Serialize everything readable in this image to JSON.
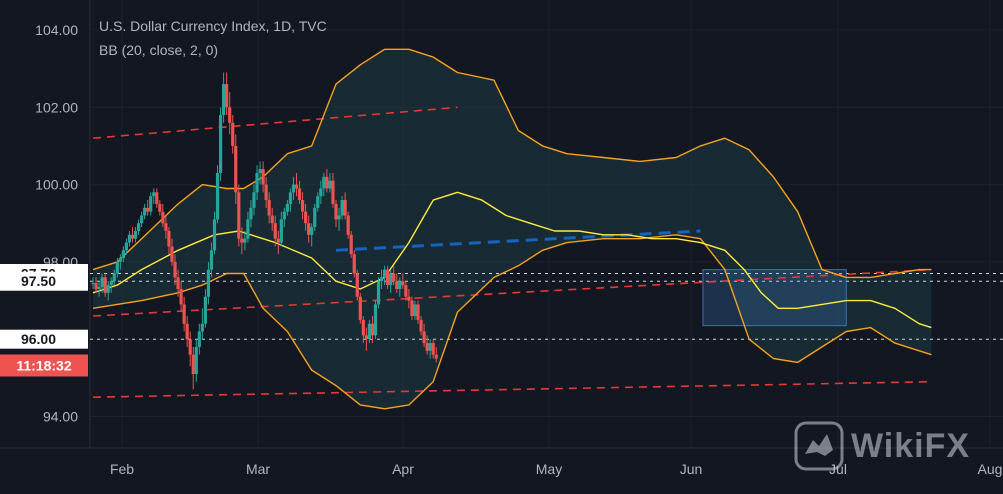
{
  "chart_data": {
    "type": "candlestick",
    "title": "U.S. Dollar Currency Index, 1D, TVC",
    "indicator": "BB (20, close, 2, 0)",
    "ylim": [
      93.2,
      104.6
    ],
    "y_ticks": [
      94.0,
      96.0,
      98.0,
      100.0,
      102.0,
      104.0
    ],
    "x_labels": [
      "Feb",
      "Mar",
      "Apr",
      "May",
      "Jun",
      "Jul",
      "Aug"
    ],
    "price_marks": [
      {
        "label": "97.70",
        "value": 97.7
      },
      {
        "label": "97.50",
        "value": 97.5
      },
      {
        "label": "96.00",
        "value": 96.0
      }
    ],
    "countdown_label": "11:18:32",
    "countdown_value": 95.32,
    "bb_middle": [
      [
        0,
        97.2
      ],
      [
        10,
        97.4
      ],
      [
        20,
        97.8
      ],
      [
        35,
        98.3
      ],
      [
        50,
        98.7
      ],
      [
        60,
        98.8
      ],
      [
        75,
        98.5
      ],
      [
        90,
        98.1
      ],
      [
        100,
        97.5
      ],
      [
        110,
        97.3
      ],
      [
        120,
        97.6
      ],
      [
        130,
        98.5
      ],
      [
        140,
        99.6
      ],
      [
        150,
        99.8
      ],
      [
        160,
        99.6
      ],
      [
        170,
        99.2
      ],
      [
        180,
        99.0
      ],
      [
        190,
        98.8
      ],
      [
        200,
        98.8
      ],
      [
        210,
        98.7
      ],
      [
        220,
        98.7
      ],
      [
        230,
        98.6
      ],
      [
        240,
        98.6
      ],
      [
        250,
        98.5
      ],
      [
        260,
        98.3
      ],
      [
        268,
        97.8
      ],
      [
        275,
        97.2
      ],
      [
        282,
        96.8
      ],
      [
        290,
        96.8
      ],
      [
        300,
        96.9
      ],
      [
        310,
        97.0
      ],
      [
        320,
        97.0
      ],
      [
        330,
        96.8
      ],
      [
        340,
        96.4
      ],
      [
        345,
        96.3
      ]
    ],
    "bb_upper": [
      [
        0,
        97.8
      ],
      [
        10,
        98.0
      ],
      [
        20,
        98.6
      ],
      [
        35,
        99.5
      ],
      [
        45,
        100.0
      ],
      [
        55,
        99.9
      ],
      [
        62,
        99.9
      ],
      [
        70,
        100.2
      ],
      [
        80,
        100.8
      ],
      [
        90,
        101.0
      ],
      [
        100,
        102.6
      ],
      [
        110,
        103.1
      ],
      [
        120,
        103.5
      ],
      [
        130,
        103.5
      ],
      [
        140,
        103.3
      ],
      [
        150,
        102.9
      ],
      [
        165,
        102.7
      ],
      [
        175,
        101.4
      ],
      [
        185,
        101.0
      ],
      [
        195,
        100.8
      ],
      [
        210,
        100.7
      ],
      [
        225,
        100.6
      ],
      [
        240,
        100.7
      ],
      [
        250,
        101.0
      ],
      [
        260,
        101.2
      ],
      [
        270,
        100.9
      ],
      [
        280,
        100.2
      ],
      [
        290,
        99.3
      ],
      [
        300,
        97.8
      ],
      [
        310,
        97.6
      ],
      [
        320,
        97.6
      ],
      [
        330,
        97.7
      ],
      [
        340,
        97.8
      ],
      [
        345,
        97.8
      ]
    ],
    "bb_lower": [
      [
        0,
        96.8
      ],
      [
        10,
        96.9
      ],
      [
        20,
        97.0
      ],
      [
        35,
        97.2
      ],
      [
        45,
        97.4
      ],
      [
        55,
        97.7
      ],
      [
        62,
        97.7
      ],
      [
        70,
        96.8
      ],
      [
        80,
        96.2
      ],
      [
        90,
        95.2
      ],
      [
        100,
        94.8
      ],
      [
        110,
        94.3
      ],
      [
        120,
        94.2
      ],
      [
        130,
        94.3
      ],
      [
        140,
        94.9
      ],
      [
        150,
        96.7
      ],
      [
        165,
        97.6
      ],
      [
        175,
        97.9
      ],
      [
        185,
        98.3
      ],
      [
        195,
        98.5
      ],
      [
        210,
        98.6
      ],
      [
        225,
        98.6
      ],
      [
        240,
        98.7
      ],
      [
        250,
        98.6
      ],
      [
        260,
        97.8
      ],
      [
        270,
        96.0
      ],
      [
        280,
        95.5
      ],
      [
        290,
        95.4
      ],
      [
        300,
        95.8
      ],
      [
        310,
        96.2
      ],
      [
        320,
        96.3
      ],
      [
        330,
        95.9
      ],
      [
        340,
        95.7
      ],
      [
        345,
        95.6
      ]
    ],
    "candles": [
      [
        97.45,
        97.6,
        97.3,
        97.45
      ],
      [
        97.45,
        97.6,
        97.2,
        97.3
      ],
      [
        97.3,
        97.5,
        97.1,
        97.35
      ],
      [
        97.35,
        97.7,
        97.2,
        97.6
      ],
      [
        97.6,
        97.7,
        97.1,
        97.2
      ],
      [
        97.2,
        97.5,
        97.0,
        97.4
      ],
      [
        97.4,
        97.6,
        97.2,
        97.5
      ],
      [
        97.5,
        97.8,
        97.4,
        97.7
      ],
      [
        97.7,
        98.1,
        97.6,
        98.0
      ],
      [
        98.0,
        98.2,
        97.8,
        98.1
      ],
      [
        98.1,
        98.4,
        98.0,
        98.3
      ],
      [
        98.3,
        98.6,
        98.2,
        98.5
      ],
      [
        98.5,
        98.8,
        98.4,
        98.7
      ],
      [
        98.7,
        98.9,
        98.5,
        98.6
      ],
      [
        98.6,
        98.9,
        98.5,
        98.8
      ],
      [
        98.8,
        99.1,
        98.7,
        99.0
      ],
      [
        99.0,
        99.3,
        98.9,
        99.2
      ],
      [
        99.2,
        99.5,
        99.1,
        99.4
      ],
      [
        99.4,
        99.6,
        99.2,
        99.3
      ],
      [
        99.3,
        99.8,
        99.2,
        99.7
      ],
      [
        99.7,
        99.9,
        99.5,
        99.8
      ],
      [
        99.8,
        99.9,
        99.4,
        99.5
      ],
      [
        99.5,
        99.6,
        99.2,
        99.3
      ],
      [
        99.3,
        99.5,
        98.9,
        99.0
      ],
      [
        99.0,
        99.2,
        98.6,
        98.8
      ],
      [
        98.8,
        98.9,
        98.2,
        98.4
      ],
      [
        98.4,
        98.6,
        97.9,
        98.0
      ],
      [
        98.0,
        98.2,
        97.4,
        97.6
      ],
      [
        97.6,
        97.8,
        97.1,
        97.3
      ],
      [
        97.3,
        97.5,
        96.7,
        96.9
      ],
      [
        96.9,
        97.1,
        96.2,
        96.4
      ],
      [
        96.4,
        96.6,
        95.8,
        96.0
      ],
      [
        96.0,
        96.2,
        95.3,
        95.6
      ],
      [
        95.6,
        95.8,
        94.7,
        95.1
      ],
      [
        95.1,
        96.0,
        94.9,
        95.8
      ],
      [
        95.8,
        96.4,
        95.6,
        96.2
      ],
      [
        96.2,
        96.8,
        96.0,
        96.4
      ],
      [
        96.4,
        97.3,
        96.3,
        97.1
      ],
      [
        97.1,
        98.0,
        96.9,
        97.8
      ],
      [
        97.8,
        98.5,
        97.6,
        98.3
      ],
      [
        98.3,
        99.3,
        98.2,
        99.1
      ],
      [
        99.1,
        100.5,
        99.0,
        100.3
      ],
      [
        100.3,
        102.0,
        100.1,
        101.8
      ],
      [
        101.8,
        102.9,
        101.6,
        102.6
      ],
      [
        102.6,
        102.9,
        101.8,
        102.0
      ],
      [
        102.0,
        102.4,
        101.3,
        101.6
      ],
      [
        101.6,
        101.8,
        100.8,
        101.0
      ],
      [
        101.0,
        101.3,
        99.5,
        99.8
      ],
      [
        99.8,
        100.0,
        98.4,
        98.6
      ],
      [
        98.6,
        98.9,
        98.2,
        98.5
      ],
      [
        98.5,
        98.8,
        98.3,
        98.6
      ],
      [
        98.6,
        99.3,
        98.5,
        99.1
      ],
      [
        99.1,
        99.6,
        98.9,
        99.4
      ],
      [
        99.4,
        100.0,
        99.2,
        99.8
      ],
      [
        99.8,
        100.5,
        99.6,
        100.3
      ],
      [
        100.3,
        100.6,
        100.0,
        100.4
      ],
      [
        100.4,
        100.6,
        99.8,
        100.0
      ],
      [
        100.0,
        100.2,
        99.4,
        99.6
      ],
      [
        99.6,
        99.8,
        99.0,
        99.2
      ],
      [
        99.2,
        99.4,
        98.8,
        99.0
      ],
      [
        99.0,
        99.2,
        98.4,
        98.6
      ],
      [
        98.6,
        98.8,
        98.2,
        98.5
      ],
      [
        98.5,
        99.3,
        98.4,
        99.1
      ],
      [
        99.1,
        99.4,
        98.9,
        99.3
      ],
      [
        99.3,
        99.6,
        99.2,
        99.5
      ],
      [
        99.5,
        99.9,
        99.3,
        99.8
      ],
      [
        99.8,
        100.2,
        99.6,
        100.0
      ],
      [
        100.0,
        100.3,
        99.7,
        99.9
      ],
      [
        99.9,
        100.1,
        99.5,
        99.6
      ],
      [
        99.6,
        99.8,
        99.1,
        99.3
      ],
      [
        99.3,
        99.5,
        98.8,
        99.0
      ],
      [
        99.0,
        99.2,
        98.5,
        98.7
      ],
      [
        98.7,
        99.0,
        98.4,
        98.9
      ],
      [
        98.9,
        99.5,
        98.8,
        99.4
      ],
      [
        99.4,
        99.8,
        99.3,
        99.7
      ],
      [
        99.7,
        100.1,
        99.5,
        99.9
      ],
      [
        99.9,
        100.3,
        99.7,
        100.2
      ],
      [
        100.2,
        100.4,
        99.8,
        99.9
      ],
      [
        99.9,
        100.3,
        99.8,
        100.1
      ],
      [
        100.1,
        100.3,
        99.4,
        99.5
      ],
      [
        99.5,
        99.6,
        98.9,
        99.1
      ],
      [
        99.1,
        99.4,
        98.8,
        99.2
      ],
      [
        99.2,
        99.7,
        99.1,
        99.6
      ],
      [
        99.6,
        99.8,
        99.1,
        99.2
      ],
      [
        99.2,
        99.3,
        98.6,
        98.7
      ],
      [
        98.7,
        98.8,
        98.1,
        98.2
      ],
      [
        98.2,
        98.3,
        97.6,
        97.7
      ],
      [
        97.7,
        97.8,
        97.0,
        97.1
      ],
      [
        97.1,
        97.2,
        96.4,
        96.5
      ],
      [
        96.5,
        96.6,
        95.9,
        96.1
      ],
      [
        96.1,
        96.3,
        95.7,
        96.0
      ],
      [
        96.0,
        96.5,
        95.9,
        96.4
      ],
      [
        96.4,
        96.6,
        95.9,
        96.1
      ],
      [
        96.1,
        97.0,
        96.0,
        96.9
      ],
      [
        96.9,
        97.6,
        96.8,
        97.5
      ],
      [
        97.5,
        97.8,
        97.3,
        97.6
      ],
      [
        97.6,
        97.9,
        97.4,
        97.8
      ],
      [
        97.8,
        97.9,
        97.3,
        97.4
      ],
      [
        97.4,
        97.8,
        97.2,
        97.7
      ],
      [
        97.7,
        97.9,
        97.4,
        97.5
      ],
      [
        97.5,
        97.7,
        97.2,
        97.3
      ],
      [
        97.3,
        97.6,
        97.1,
        97.5
      ],
      [
        97.5,
        97.7,
        97.3,
        97.4
      ],
      [
        97.4,
        97.5,
        97.0,
        97.1
      ],
      [
        97.1,
        97.3,
        96.8,
        97.0
      ],
      [
        97.0,
        97.1,
        96.5,
        96.6
      ],
      [
        96.6,
        97.0,
        96.5,
        96.9
      ],
      [
        96.9,
        97.0,
        96.4,
        96.5
      ],
      [
        96.5,
        96.6,
        96.1,
        96.2
      ],
      [
        96.2,
        96.4,
        95.8,
        95.9
      ],
      [
        95.9,
        96.1,
        95.6,
        95.7
      ],
      [
        95.7,
        96.0,
        95.5,
        95.9
      ],
      [
        95.9,
        96.0,
        95.5,
        95.6
      ],
      [
        95.6,
        95.8,
        95.4,
        95.5
      ]
    ],
    "trendlines": [
      {
        "style": "red-dash",
        "points": [
          [
            0,
            101.2
          ],
          [
            150,
            102.0
          ]
        ]
      },
      {
        "style": "red-dash",
        "points": [
          [
            0,
            96.6
          ],
          [
            345,
            97.8
          ]
        ]
      },
      {
        "style": "red-dash",
        "points": [
          [
            0,
            94.5
          ],
          [
            345,
            94.9
          ]
        ]
      },
      {
        "style": "blue-dash",
        "points": [
          [
            100,
            98.3
          ],
          [
            250,
            98.8
          ]
        ]
      }
    ],
    "range_box": {
      "x0": 251,
      "x1": 310,
      "y_low": 96.35,
      "y_high": 97.8
    },
    "colors": {
      "up": "#26a69a",
      "down": "#ef5350",
      "bb_band": "#f7a21b",
      "bb_mid": "#ffeb3b",
      "fill": "#1e3a44",
      "trend_red": "#e53935",
      "trend_blue": "#1565c0",
      "box": "#4a90e2"
    }
  },
  "watermark": {
    "brand": "WikiFX"
  }
}
